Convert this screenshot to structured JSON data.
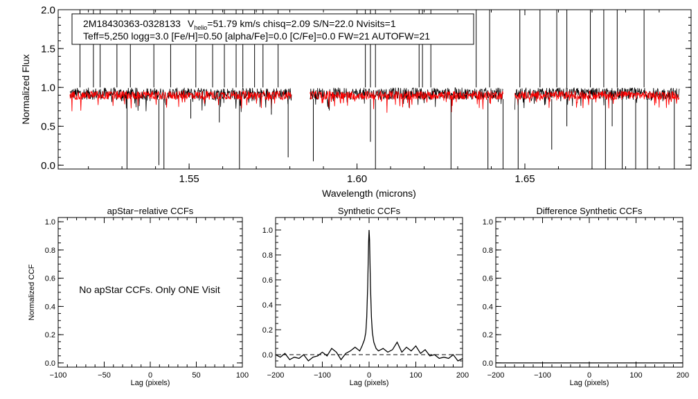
{
  "chart_data": [
    {
      "id": "spectrum",
      "type": "line",
      "xlabel": "Wavelength (microns)",
      "ylabel": "Normalized Flux",
      "xlim": [
        1.511,
        1.6995
      ],
      "ylim": [
        -0.05,
        2.0
      ],
      "xticks": [
        1.55,
        1.6,
        1.65
      ],
      "xtick_labels": [
        "1.55",
        "1.60",
        "1.65"
      ],
      "yticks": [
        0.0,
        0.5,
        1.0,
        1.5,
        2.0
      ],
      "ytick_labels": [
        "0.0",
        "0.5",
        "1.0",
        "1.5",
        "2.0"
      ],
      "chips": [
        [
          1.5145,
          1.5805
        ],
        [
          1.586,
          1.6435
        ],
        [
          1.647,
          1.696
        ]
      ],
      "series": [
        {
          "name": "observed",
          "color": "#000000",
          "level": 0.92,
          "noise": 0.035
        },
        {
          "name": "synthetic",
          "color": "#ff0000",
          "level": 0.9,
          "noise": 0.025
        }
      ],
      "spikes_up": [
        1.5175,
        1.5215,
        1.5235,
        1.5285,
        1.5325,
        1.5395,
        1.5445,
        1.552,
        1.557,
        1.5605,
        1.564,
        1.566,
        1.5695,
        1.572,
        1.5765,
        1.6025,
        1.604,
        1.6055,
        1.6185,
        1.6195,
        1.622,
        1.6355,
        1.6395,
        1.6485,
        1.6545,
        1.6595,
        1.6625,
        1.6695,
        1.6735,
        1.6775,
        1.6855
      ],
      "spikes_down": [
        {
          "x": 1.5315,
          "y": -0.05
        },
        {
          "x": 1.541,
          "y": 0.0
        },
        {
          "x": 1.5425,
          "y": -0.05
        },
        {
          "x": 1.5505,
          "y": 0.6
        },
        {
          "x": 1.559,
          "y": 0.55
        },
        {
          "x": 1.565,
          "y": -0.05
        },
        {
          "x": 1.5745,
          "y": 0.65
        },
        {
          "x": 1.5795,
          "y": 0.1
        },
        {
          "x": 1.587,
          "y": 0.05
        },
        {
          "x": 1.604,
          "y": 0.3
        },
        {
          "x": 1.6055,
          "y": -0.05
        },
        {
          "x": 1.628,
          "y": -0.05
        },
        {
          "x": 1.639,
          "y": -0.05
        },
        {
          "x": 1.6435,
          "y": -0.05
        },
        {
          "x": 1.648,
          "y": -0.05
        },
        {
          "x": 1.658,
          "y": 0.2
        },
        {
          "x": 1.6625,
          "y": 0.5
        },
        {
          "x": 1.67,
          "y": -0.05
        },
        {
          "x": 1.674,
          "y": -0.05
        },
        {
          "x": 1.676,
          "y": 0.5
        },
        {
          "x": 1.679,
          "y": -0.05
        },
        {
          "x": 1.683,
          "y": -0.05
        },
        {
          "x": 1.6865,
          "y": -0.05
        },
        {
          "x": 1.6945,
          "y": -0.05
        }
      ],
      "legend": {
        "line1": {
          "name": "2M18430363-0328133",
          "v": "V",
          "v_sub": "helio",
          "rest": "=51.79 km/s  chisq=2.09  S/N=22.0  Nvisits=1"
        },
        "line2": "Teff=5,250 logg=3.0 [Fe/H]=0.50 [alpha/Fe]=0.0 [C/Fe]=0.0 FW=21 AUTOFW=21"
      }
    },
    {
      "id": "apstar-ccf",
      "type": "line",
      "title": "apStar−relative CCFs",
      "xlabel": "Lag (pixels)",
      "ylabel": "Normalized CCF",
      "xlim": [
        -100,
        100
      ],
      "ylim": [
        -0.03,
        1.03
      ],
      "xticks": [
        -100,
        -50,
        0,
        50,
        100
      ],
      "xtick_labels": [
        "−100",
        "−50",
        "0",
        "50",
        "100"
      ],
      "yticks": [
        0.0,
        0.2,
        0.4,
        0.6,
        0.8,
        1.0
      ],
      "ytick_labels": [
        "0.0",
        "0.2",
        "0.4",
        "0.6",
        "0.8",
        "1.0"
      ],
      "annotation": "No apStar CCFs.  Only ONE Visit",
      "series": []
    },
    {
      "id": "synthetic-ccf",
      "type": "line",
      "title": "Synthetic CCFs",
      "xlabel": "Lag (pixels)",
      "xlim": [
        -200,
        200
      ],
      "ylim": [
        -0.1,
        1.1
      ],
      "xticks": [
        -200,
        -100,
        0,
        100,
        200
      ],
      "xtick_labels": [
        "−200",
        "−100",
        "0",
        "100",
        "200"
      ],
      "yticks": [
        0.0,
        0.2,
        0.4,
        0.6,
        0.8,
        1.0
      ],
      "ytick_labels": [
        "0.0",
        "0.2",
        "0.4",
        "0.6",
        "0.8",
        "1.0"
      ],
      "reference_line": {
        "y": 0.0,
        "style": "dashed"
      },
      "series": [
        {
          "name": "ccf",
          "color": "#000000",
          "x": [
            -200,
            -190,
            -180,
            -170,
            -160,
            -150,
            -140,
            -130,
            -120,
            -110,
            -100,
            -90,
            -80,
            -70,
            -60,
            -50,
            -40,
            -30,
            -20,
            -15,
            -10,
            -7,
            -5,
            -3,
            -1,
            0,
            1,
            3,
            5,
            7,
            10,
            15,
            20,
            30,
            40,
            50,
            60,
            70,
            80,
            90,
            100,
            110,
            120,
            130,
            140,
            150,
            160,
            170,
            180,
            190,
            200
          ],
          "y": [
            0.0,
            -0.02,
            0.01,
            -0.04,
            -0.02,
            -0.03,
            0.0,
            -0.05,
            -0.02,
            -0.01,
            0.02,
            -0.01,
            0.05,
            0.02,
            -0.04,
            0.01,
            0.03,
            0.06,
            0.03,
            0.07,
            0.12,
            0.18,
            0.3,
            0.55,
            0.9,
            1.0,
            0.92,
            0.55,
            0.3,
            0.18,
            0.1,
            0.05,
            0.03,
            0.05,
            0.02,
            0.04,
            0.1,
            0.02,
            0.06,
            0.03,
            0.07,
            0.01,
            0.04,
            -0.01,
            0.0,
            -0.03,
            -0.02,
            -0.03,
            0.0,
            -0.05,
            -0.03
          ]
        }
      ]
    },
    {
      "id": "difference-ccf",
      "type": "line",
      "title": "Difference Synthetic CCFs",
      "xlabel": "Lag (pixels)",
      "xlim": [
        -200,
        200
      ],
      "ylim": [
        -0.03,
        1.03
      ],
      "xticks": [
        -200,
        -100,
        0,
        100,
        200
      ],
      "xtick_labels": [
        "−200",
        "−100",
        "0",
        "100",
        "200"
      ],
      "yticks": [
        0.0,
        0.2,
        0.4,
        0.6,
        0.8,
        1.0
      ],
      "ytick_labels": [
        "0.0",
        "0.2",
        "0.4",
        "0.6",
        "0.8",
        "1.0"
      ],
      "series": [
        {
          "name": "difference",
          "color": "#000000",
          "x": [
            -200,
            200
          ],
          "y": [
            0.0,
            0.0
          ]
        }
      ]
    }
  ]
}
